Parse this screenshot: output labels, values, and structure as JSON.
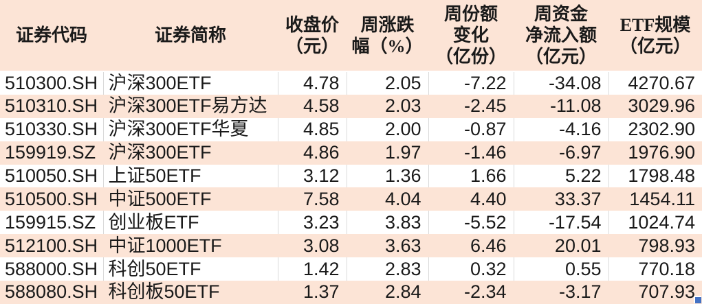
{
  "colors": {
    "header_bg": "#FCE4D6",
    "stripe_bg": "#FCE4D6",
    "white_bg": "#FFFFFF",
    "gridline": "#D9D9D9",
    "text": "#1A1A1A",
    "corner_marker": "#4472C4"
  },
  "chart_data": {
    "type": "table",
    "title": "",
    "grid": "vertical-lines-on-white-rows",
    "row_striping": "alternating white and light peach",
    "columns": [
      {
        "id": "code",
        "label": "证券代码",
        "lines": [
          "证券代码"
        ],
        "align": "left"
      },
      {
        "id": "name",
        "label": "证券简称",
        "lines": [
          "证券简称"
        ],
        "align": "left"
      },
      {
        "id": "close",
        "label": "收盘价（元）",
        "lines": [
          "收盘价",
          "（元）"
        ],
        "align": "right"
      },
      {
        "id": "week-chg",
        "label": "周涨跌幅（%）",
        "lines": [
          "周涨跌",
          "幅（%）"
        ],
        "align": "right"
      },
      {
        "id": "share-chg",
        "label": "周份额变化（亿份）",
        "lines": [
          "周份额",
          "变化",
          "（亿份）"
        ],
        "align": "right"
      },
      {
        "id": "net-inflow",
        "label": "周资金净流入额（亿元）",
        "lines": [
          "周资金",
          "净流入额",
          "（亿元）"
        ],
        "align": "right"
      },
      {
        "id": "scale",
        "label": "ETF规模（亿元）",
        "lines": [
          "ETF规模",
          "（亿元）"
        ],
        "align": "right"
      }
    ],
    "rows": [
      [
        "510300.SH",
        "沪深300ETF",
        "4.78",
        "2.05",
        "-7.22",
        "-34.08",
        "4270.67"
      ],
      [
        "510310.SH",
        "沪深300ETF易方达",
        "4.58",
        "2.03",
        "-2.45",
        "-11.08",
        "3029.96"
      ],
      [
        "510330.SH",
        "沪深300ETF华夏",
        "4.85",
        "2.00",
        "-0.87",
        "-4.16",
        "2302.90"
      ],
      [
        "159919.SZ",
        "沪深300ETF",
        "4.86",
        "1.97",
        "-1.46",
        "-6.97",
        "1976.90"
      ],
      [
        "510050.SH",
        "上证50ETF",
        "3.12",
        "1.36",
        "1.66",
        "5.22",
        "1798.48"
      ],
      [
        "510500.SH",
        "中证500ETF",
        "7.58",
        "4.04",
        "4.40",
        "33.37",
        "1454.11"
      ],
      [
        "159915.SZ",
        "创业板ETF",
        "3.23",
        "3.83",
        "-5.52",
        "-17.54",
        "1024.74"
      ],
      [
        "512100.SH",
        "中证1000ETF",
        "3.08",
        "3.63",
        "6.46",
        "20.01",
        "798.93"
      ],
      [
        "588000.SH",
        "科创50ETF",
        "1.42",
        "2.83",
        "0.32",
        "0.55",
        "770.18"
      ],
      [
        "588080.SH",
        "科创板50ETF",
        "1.37",
        "2.84",
        "-2.34",
        "-3.17",
        "707.93"
      ]
    ]
  }
}
